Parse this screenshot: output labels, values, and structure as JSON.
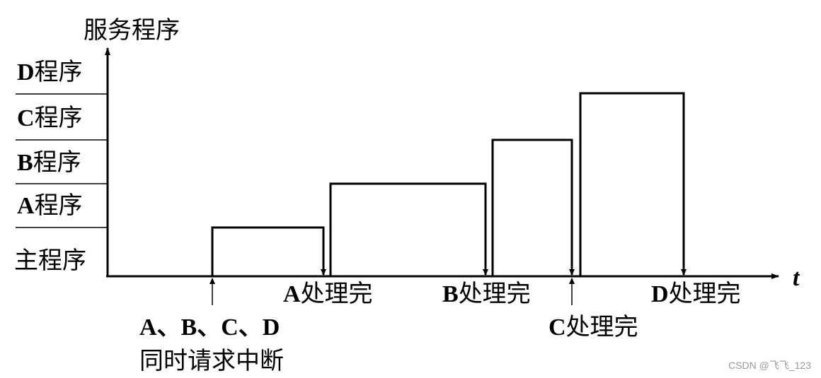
{
  "diagram": {
    "y_axis_title": "服务程序",
    "x_axis_label": "t",
    "levels": [
      {
        "letter": "D",
        "text": "程序"
      },
      {
        "letter": "C",
        "text": "程序"
      },
      {
        "letter": "B",
        "text": "程序"
      },
      {
        "letter": "A",
        "text": "程序"
      },
      {
        "letter": "",
        "text": "主程序"
      }
    ],
    "events": [
      {
        "letter": "A",
        "text": "处理完"
      },
      {
        "letter": "B",
        "text": "处理完"
      },
      {
        "letter": "C",
        "text": "处理完"
      },
      {
        "letter": "D",
        "text": "处理完"
      }
    ],
    "request": {
      "letters": "A、B、C、D",
      "text": "同时请求中断"
    },
    "watermark": "CSDN @飞飞_123"
  }
}
